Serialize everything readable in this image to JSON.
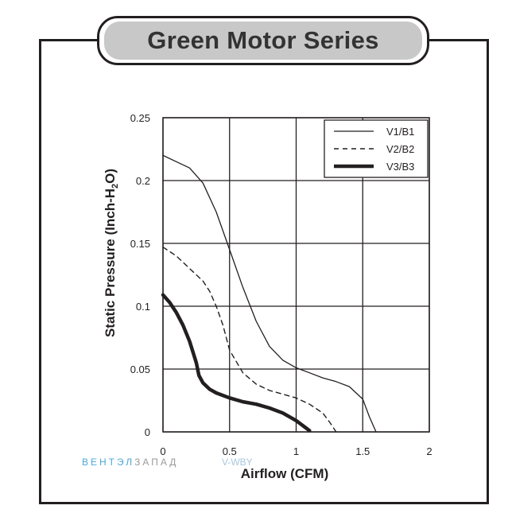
{
  "title": "Green Motor Series",
  "watermark": {
    "part1": "ВЕНТЭЛ",
    "part2": "ЗАПАД",
    "part3": "V-WBY"
  },
  "chart_data": {
    "type": "line",
    "xlabel": "Airflow (CFM)",
    "ylabel_main": "Static Pressure (Inch-H",
    "ylabel_sub": "2",
    "ylabel_end": "O)",
    "xlim": [
      0,
      2
    ],
    "ylim": [
      0,
      0.25
    ],
    "x_ticks": [
      {
        "value": 0,
        "label": "0"
      },
      {
        "value": 0.5,
        "label": "0.5"
      },
      {
        "value": 1,
        "label": "1"
      },
      {
        "value": 1.5,
        "label": "1.5"
      },
      {
        "value": 2,
        "label": "2"
      }
    ],
    "y_ticks": [
      {
        "value": 0,
        "label": "0"
      },
      {
        "value": 0.05,
        "label": "0.05"
      },
      {
        "value": 0.1,
        "label": "0.1"
      },
      {
        "value": 0.15,
        "label": "0.15"
      },
      {
        "value": 0.2,
        "label": "0.2"
      },
      {
        "value": 0.25,
        "label": "0.25"
      }
    ],
    "grid": true,
    "legend_position": "top-right",
    "series": [
      {
        "name": "V1/B1",
        "style": "thin-solid",
        "x": [
          0,
          0.1,
          0.2,
          0.3,
          0.4,
          0.5,
          0.6,
          0.7,
          0.8,
          0.9,
          1.0,
          1.1,
          1.2,
          1.3,
          1.4,
          1.5,
          1.55,
          1.6
        ],
        "y": [
          0.22,
          0.215,
          0.21,
          0.198,
          0.175,
          0.145,
          0.115,
          0.088,
          0.068,
          0.057,
          0.051,
          0.047,
          0.043,
          0.04,
          0.036,
          0.026,
          0.012,
          0.0
        ]
      },
      {
        "name": "V2/B2",
        "style": "dashed",
        "x": [
          0,
          0.1,
          0.2,
          0.3,
          0.35,
          0.4,
          0.45,
          0.5,
          0.6,
          0.7,
          0.8,
          0.9,
          1.0,
          1.1,
          1.2,
          1.25,
          1.3
        ],
        "y": [
          0.147,
          0.14,
          0.13,
          0.12,
          0.112,
          0.1,
          0.085,
          0.065,
          0.047,
          0.038,
          0.033,
          0.03,
          0.027,
          0.022,
          0.015,
          0.008,
          0.0
        ]
      },
      {
        "name": "V3/B3",
        "style": "thick-solid",
        "x": [
          0,
          0.05,
          0.1,
          0.15,
          0.2,
          0.25,
          0.27,
          0.3,
          0.35,
          0.4,
          0.5,
          0.6,
          0.7,
          0.8,
          0.9,
          1.0,
          1.05,
          1.1
        ],
        "y": [
          0.109,
          0.103,
          0.095,
          0.085,
          0.072,
          0.055,
          0.045,
          0.039,
          0.034,
          0.031,
          0.027,
          0.024,
          0.022,
          0.019,
          0.015,
          0.009,
          0.005,
          0.001
        ]
      }
    ]
  }
}
